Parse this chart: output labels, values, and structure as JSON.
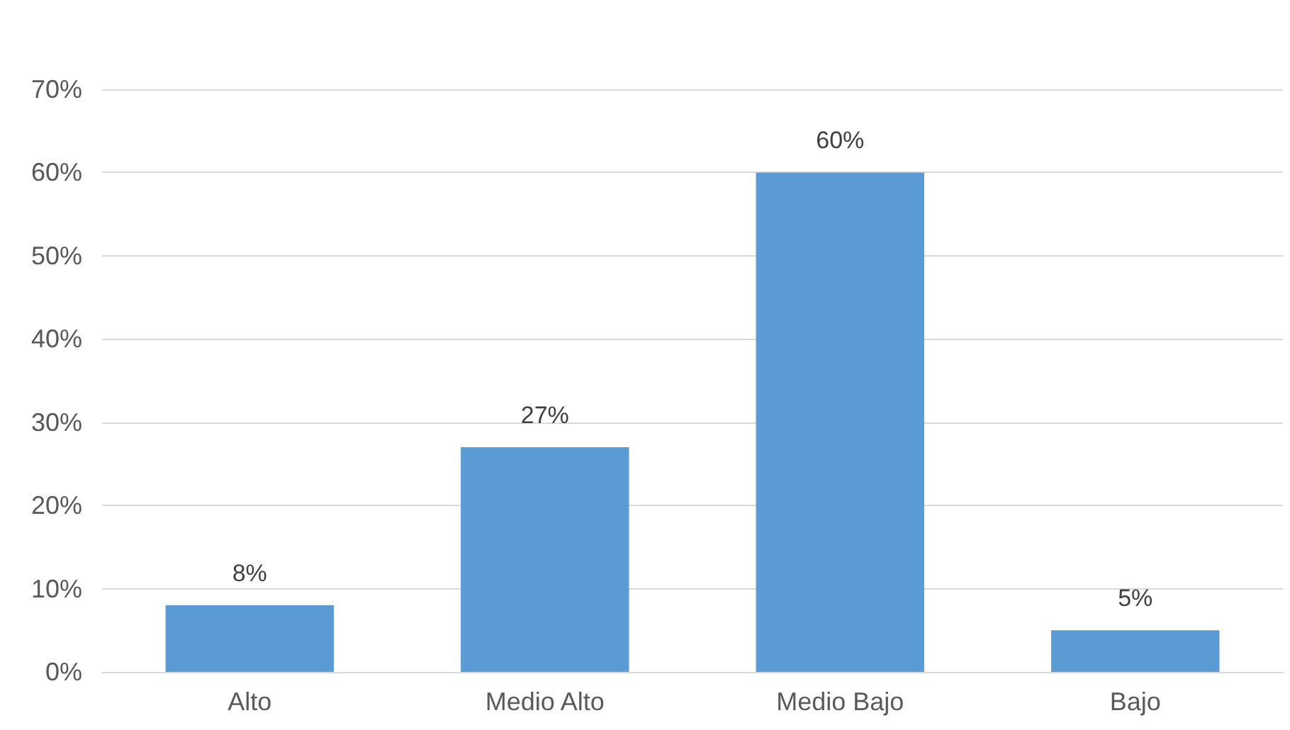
{
  "chart_data": {
    "type": "bar",
    "categories": [
      "Alto",
      "Medio Alto",
      "Medio Bajo",
      "Bajo"
    ],
    "values": [
      8,
      27,
      60,
      5
    ],
    "value_labels": [
      "8%",
      "27%",
      "60%",
      "5%"
    ],
    "color": "#5b9bd5",
    "ylim": [
      0,
      70
    ],
    "yticks": [
      {
        "value": 0,
        "label": "0%"
      },
      {
        "value": 10,
        "label": "10%"
      },
      {
        "value": 20,
        "label": "20%"
      },
      {
        "value": 30,
        "label": "30%"
      },
      {
        "value": 40,
        "label": "40%"
      },
      {
        "value": 50,
        "label": "50%"
      },
      {
        "value": 60,
        "label": "60%"
      },
      {
        "value": 70,
        "label": "70%"
      }
    ],
    "grid": "y"
  }
}
